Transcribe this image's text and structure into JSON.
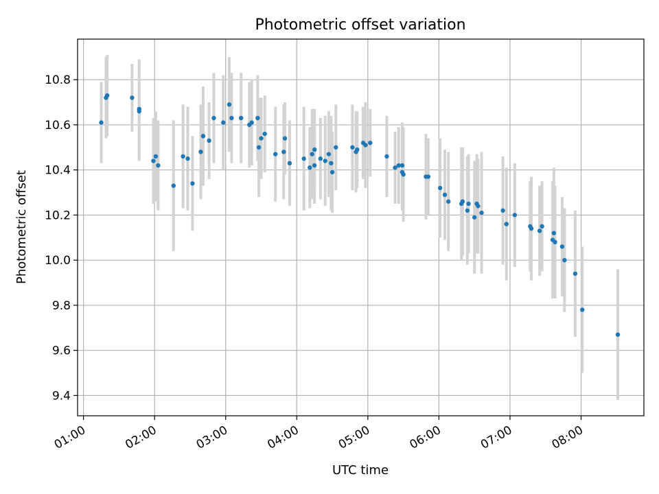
{
  "chart_data": {
    "type": "scatter",
    "title": "Photometric offset variation",
    "xlabel": "UTC time",
    "ylabel": "Photometric offset",
    "xlim": [
      "00:55",
      "08:53"
    ],
    "ylim": [
      9.31,
      10.98
    ],
    "grid": true,
    "x_ticks": [
      "01:00",
      "02:00",
      "03:00",
      "04:00",
      "05:00",
      "06:00",
      "07:00",
      "08:00"
    ],
    "y_ticks": [
      "9.4",
      "9.6",
      "9.8",
      "10.0",
      "10.2",
      "10.4",
      "10.6",
      "10.8"
    ],
    "colors": {
      "point": "#1f77b4",
      "errorbar": "#d3d3d3",
      "grid": "#b0b0b0"
    },
    "series": [
      {
        "x": [
          "01:15",
          "01:19",
          "01:20",
          "01:41",
          "01:47",
          "01:47",
          "01:59",
          "02:01",
          "02:03",
          "02:16",
          "02:24",
          "02:28",
          "02:32",
          "02:39",
          "02:41",
          "02:46",
          "02:50",
          "02:58",
          "03:03",
          "03:05",
          "03:13",
          "03:20",
          "03:22",
          "03:27",
          "03:28",
          "03:30",
          "03:33",
          "03:42",
          "03:49",
          "03:50",
          "03:54",
          "04:06",
          "04:11",
          "04:13",
          "04:15",
          "04:15",
          "04:20",
          "04:24",
          "04:27",
          "04:29",
          "04:30",
          "04:33",
          "04:47",
          "04:50",
          "04:51",
          "04:56",
          "04:58",
          "05:02",
          "05:16",
          "05:23",
          "05:26",
          "05:29",
          "05:29",
          "05:30",
          "05:49",
          "05:51",
          "06:01",
          "06:05",
          "06:08",
          "06:19",
          "06:20",
          "06:24",
          "06:25",
          "06:30",
          "06:32",
          "06:33",
          "06:36",
          "06:54",
          "06:57",
          "07:04",
          "07:17",
          "07:18",
          "07:25",
          "07:27",
          "07:36",
          "07:37",
          "07:38",
          "07:44",
          "07:46",
          "07:55",
          "08:01",
          "08:31"
        ],
        "y": [
          10.61,
          10.72,
          10.73,
          10.72,
          10.66,
          10.67,
          10.44,
          10.46,
          10.42,
          10.33,
          10.46,
          10.45,
          10.34,
          10.48,
          10.55,
          10.53,
          10.63,
          10.61,
          10.69,
          10.63,
          10.63,
          10.6,
          10.61,
          10.63,
          10.5,
          10.54,
          10.56,
          10.47,
          10.48,
          10.54,
          10.43,
          10.45,
          10.41,
          10.47,
          10.42,
          10.49,
          10.45,
          10.44,
          10.47,
          10.43,
          10.39,
          10.5,
          10.5,
          10.48,
          10.49,
          10.52,
          10.51,
          10.52,
          10.46,
          10.41,
          10.42,
          10.42,
          10.39,
          10.38,
          10.37,
          10.37,
          10.32,
          10.29,
          10.26,
          10.25,
          10.26,
          10.22,
          10.25,
          10.19,
          10.25,
          10.24,
          10.21,
          10.22,
          10.16,
          10.2,
          10.15,
          10.14,
          10.13,
          10.15,
          10.09,
          10.12,
          10.08,
          10.06,
          10.0,
          9.94,
          9.78,
          9.67
        ],
        "yerr": [
          0.18,
          0.18,
          0.18,
          0.15,
          0.22,
          0.22,
          0.19,
          0.2,
          0.2,
          0.29,
          0.23,
          0.23,
          0.21,
          0.21,
          0.22,
          0.17,
          0.2,
          0.21,
          0.21,
          0.2,
          0.2,
          0.19,
          0.19,
          0.19,
          0.22,
          0.18,
          0.17,
          0.21,
          0.21,
          0.16,
          0.19,
          0.23,
          0.18,
          0.2,
          0.17,
          0.18,
          0.18,
          0.2,
          0.19,
          0.21,
          0.18,
          0.19,
          0.19,
          0.18,
          0.17,
          0.16,
          0.19,
          0.15,
          0.18,
          0.16,
          0.17,
          0.19,
          0.17,
          0.21,
          0.19,
          0.17,
          0.22,
          0.2,
          0.22,
          0.25,
          0.24,
          0.24,
          0.22,
          0.25,
          0.22,
          0.21,
          0.27,
          0.24,
          0.25,
          0.23,
          0.2,
          0.23,
          0.2,
          0.2,
          0.26,
          0.29,
          0.25,
          0.22,
          0.23,
          0.28,
          0.28,
          0.29
        ]
      }
    ]
  }
}
